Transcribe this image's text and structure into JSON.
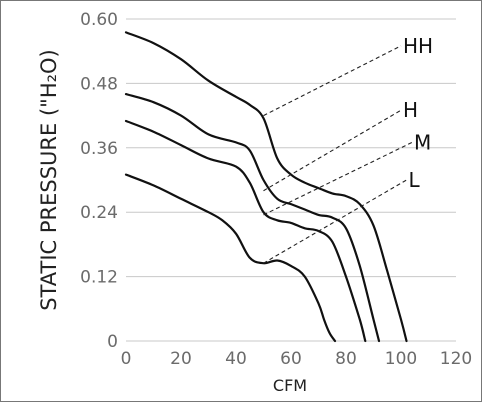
{
  "chart_data": {
    "type": "line",
    "title": "",
    "xlabel": "CFM",
    "ylabel": "STATIC PRESSURE (\"H₂O)",
    "xlim": [
      0,
      120
    ],
    "ylim": [
      0,
      0.6
    ],
    "x_ticks": [
      "0",
      "20",
      "40",
      "60",
      "80",
      "100",
      "120"
    ],
    "y_ticks": [
      "0",
      "0.12",
      "0.24",
      "0.36",
      "0.48",
      "0.60"
    ],
    "grid": "horizontal",
    "series": [
      {
        "name": "HH",
        "x": [
          0,
          10,
          20,
          30,
          40,
          45,
          50,
          55,
          60,
          65,
          70,
          75,
          80,
          85,
          90,
          95,
          100,
          102
        ],
        "y": [
          0.575,
          0.555,
          0.525,
          0.485,
          0.455,
          0.44,
          0.415,
          0.34,
          0.31,
          0.295,
          0.285,
          0.275,
          0.27,
          0.255,
          0.215,
          0.13,
          0.04,
          0
        ]
      },
      {
        "name": "H",
        "x": [
          0,
          10,
          20,
          30,
          40,
          45,
          50,
          55,
          60,
          65,
          70,
          75,
          80,
          85,
          90,
          92
        ],
        "y": [
          0.46,
          0.445,
          0.42,
          0.385,
          0.37,
          0.355,
          0.3,
          0.265,
          0.255,
          0.245,
          0.235,
          0.23,
          0.21,
          0.14,
          0.04,
          0
        ]
      },
      {
        "name": "M",
        "x": [
          0,
          10,
          20,
          30,
          40,
          45,
          50,
          55,
          60,
          65,
          70,
          75,
          80,
          85,
          87
        ],
        "y": [
          0.41,
          0.39,
          0.365,
          0.34,
          0.325,
          0.295,
          0.24,
          0.225,
          0.22,
          0.21,
          0.205,
          0.185,
          0.12,
          0.04,
          0
        ]
      },
      {
        "name": "L",
        "x": [
          0,
          10,
          20,
          30,
          35,
          40,
          45,
          50,
          55,
          60,
          65,
          70,
          72,
          74,
          76
        ],
        "y": [
          0.31,
          0.29,
          0.265,
          0.24,
          0.225,
          0.2,
          0.155,
          0.145,
          0.15,
          0.14,
          0.12,
          0.07,
          0.04,
          0.015,
          0
        ]
      }
    ],
    "annotations": [
      {
        "text": "HH",
        "series": "HH",
        "anchor": [
          50,
          0.42
        ],
        "label_at": [
          100,
          0.55
        ]
      },
      {
        "text": "H",
        "series": "H",
        "anchor": [
          50,
          0.28
        ],
        "label_at": [
          100,
          0.43
        ]
      },
      {
        "text": "M",
        "series": "M",
        "anchor": [
          50,
          0.235
        ],
        "label_at": [
          104,
          0.37
        ]
      },
      {
        "text": "L",
        "series": "L",
        "anchor": [
          50,
          0.145
        ],
        "label_at": [
          102,
          0.3
        ]
      }
    ]
  }
}
